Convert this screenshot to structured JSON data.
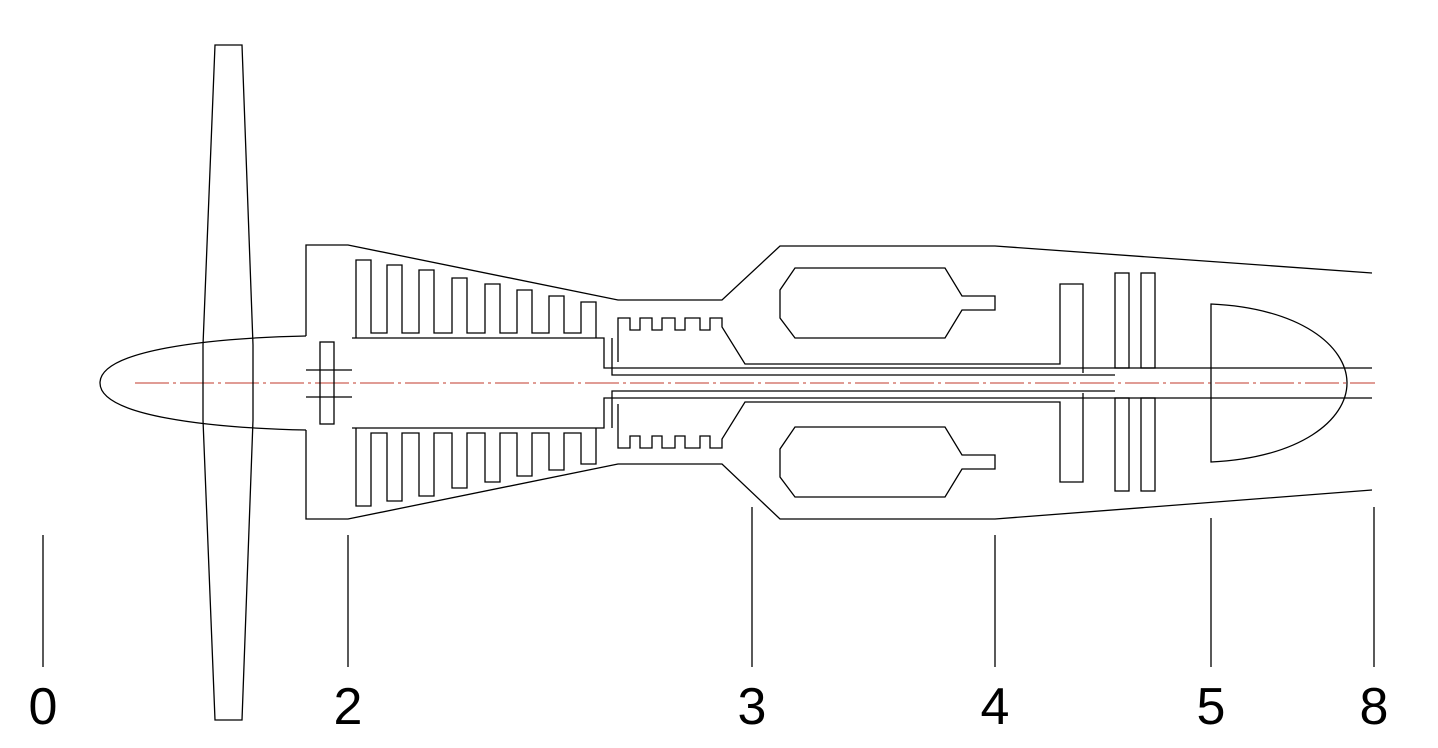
{
  "diagram": {
    "stations": [
      {
        "label": "0"
      },
      {
        "label": "2"
      },
      {
        "label": "3"
      },
      {
        "label": "4"
      },
      {
        "label": "5"
      },
      {
        "label": "8"
      }
    ]
  }
}
